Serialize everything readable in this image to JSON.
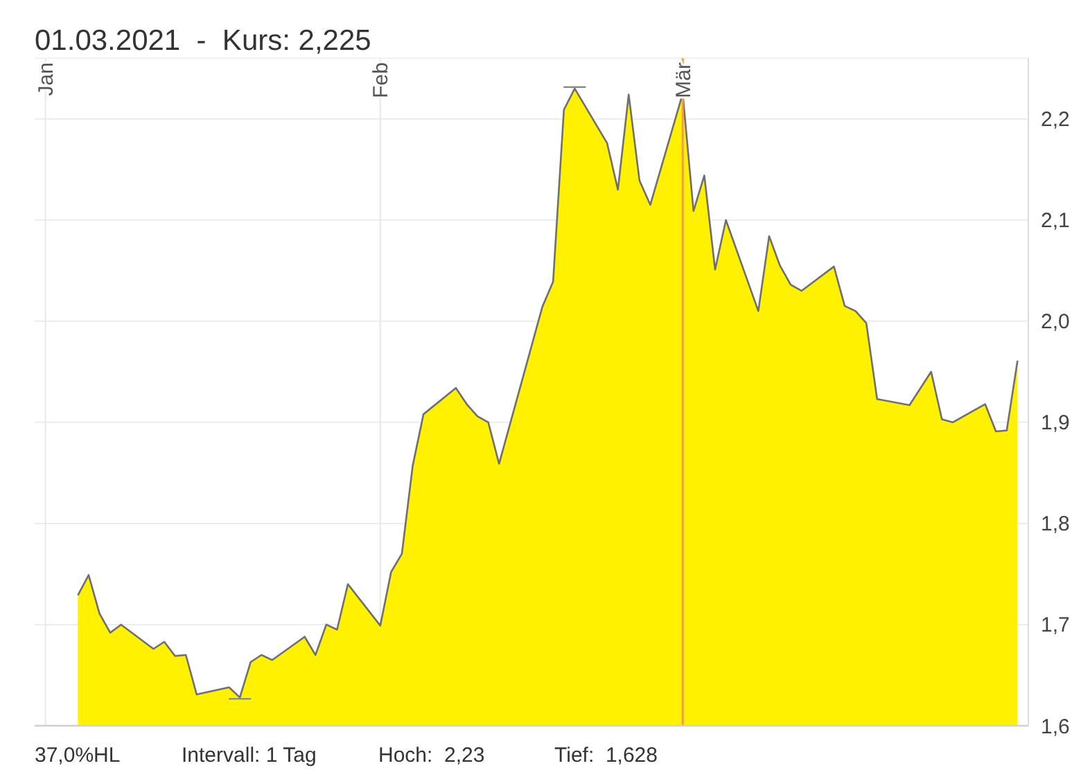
{
  "chart_data": {
    "type": "area",
    "title": "01.03.2021  -  Kurs: 2,225",
    "x": [
      "2021-01-04",
      "2021-01-05",
      "2021-01-06",
      "2021-01-07",
      "2021-01-08",
      "2021-01-11",
      "2021-01-12",
      "2021-01-13",
      "2021-01-14",
      "2021-01-15",
      "2021-01-18",
      "2021-01-19",
      "2021-01-20",
      "2021-01-21",
      "2021-01-22",
      "2021-01-25",
      "2021-01-26",
      "2021-01-27",
      "2021-01-28",
      "2021-01-29",
      "2021-02-01",
      "2021-02-02",
      "2021-02-03",
      "2021-02-04",
      "2021-02-05",
      "2021-02-08",
      "2021-02-09",
      "2021-02-10",
      "2021-02-11",
      "2021-02-12",
      "2021-02-16",
      "2021-02-17",
      "2021-02-18",
      "2021-02-19",
      "2021-02-22",
      "2021-02-23",
      "2021-02-24",
      "2021-02-25",
      "2021-02-26",
      "2021-03-01",
      "2021-03-02",
      "2021-03-03",
      "2021-03-04",
      "2021-03-05",
      "2021-03-08",
      "2021-03-09",
      "2021-03-10",
      "2021-03-11",
      "2021-03-12",
      "2021-03-15",
      "2021-03-16",
      "2021-03-17",
      "2021-03-18",
      "2021-03-19",
      "2021-03-22",
      "2021-03-24",
      "2021-03-25",
      "2021-03-26",
      "2021-03-29",
      "2021-03-30",
      "2021-03-31",
      "2021-04-01"
    ],
    "values": [
      1.729,
      1.749,
      1.711,
      1.692,
      1.7,
      1.676,
      1.683,
      1.669,
      1.67,
      1.631,
      1.638,
      1.628,
      1.663,
      1.67,
      1.665,
      1.688,
      1.67,
      1.7,
      1.695,
      1.74,
      1.699,
      1.752,
      1.77,
      1.857,
      1.908,
      1.934,
      1.918,
      1.906,
      1.9,
      1.859,
      2.014,
      2.039,
      2.209,
      2.23,
      2.176,
      2.13,
      2.224,
      2.139,
      2.115,
      2.225,
      2.109,
      2.144,
      2.051,
      2.1,
      2.01,
      2.084,
      2.055,
      2.036,
      2.03,
      2.054,
      2.015,
      2.01,
      1.998,
      1.923,
      1.917,
      1.95,
      1.903,
      1.9,
      1.918,
      1.891,
      1.892,
      1.961
    ],
    "color": "#fff100",
    "xlim": [
      "2020-12-31",
      "2021-04-02"
    ],
    "xticks": [
      {
        "value": "2021-01-01",
        "label": "Jan"
      },
      {
        "value": "2021-02-01",
        "label": "Feb"
      },
      {
        "value": "2021-03-01",
        "label": "Mär"
      }
    ],
    "ylim": [
      1.6,
      2.26
    ],
    "yticks": [
      {
        "value": 1.6,
        "label": "1,6"
      },
      {
        "value": 1.7,
        "label": "1,7"
      },
      {
        "value": 1.8,
        "label": "1,8"
      },
      {
        "value": 1.9,
        "label": "1,9"
      },
      {
        "value": 2.0,
        "label": "2,0"
      },
      {
        "value": 2.1,
        "label": "2,1"
      },
      {
        "value": 2.2,
        "label": "2,2"
      }
    ],
    "grid": true,
    "ref_lines": [
      {
        "axis": "x",
        "value": "2021-03-01",
        "color": "#f0a040"
      }
    ],
    "annotations": [
      "37,0%HL",
      "Intervall: 1 Tag",
      "Hoch:  2,23",
      "Tief:  1,628"
    ]
  }
}
